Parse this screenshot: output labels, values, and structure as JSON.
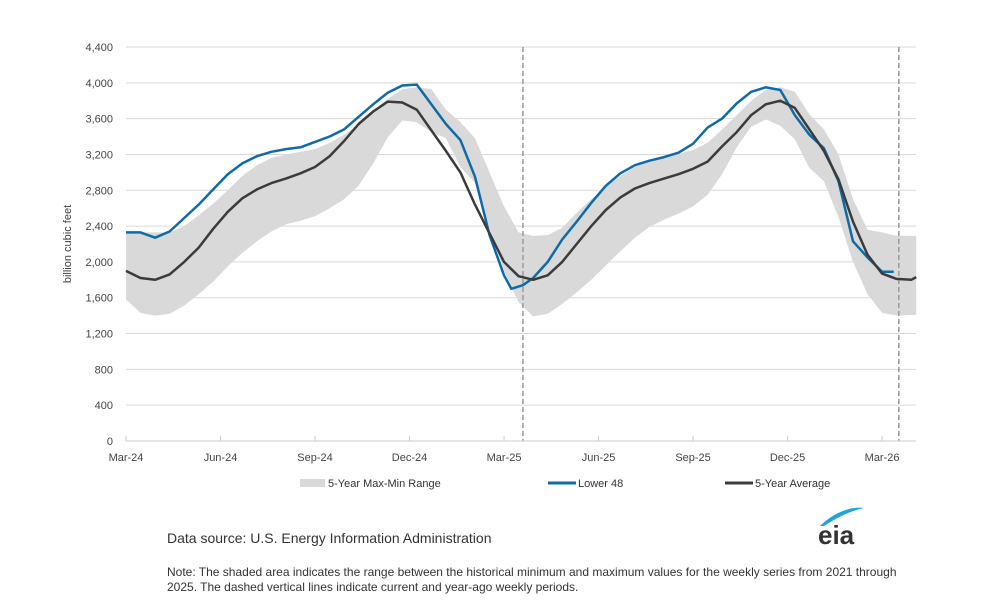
{
  "chart_data": {
    "type": "line",
    "title": "",
    "ylabel": "billion cubic feet",
    "xlabel": "",
    "ylim": [
      0,
      4400
    ],
    "yticks": [
      0,
      400,
      800,
      1200,
      1600,
      2000,
      2400,
      2800,
      3200,
      3600,
      4000,
      4400
    ],
    "ytick_labels": [
      "0",
      "400",
      "800",
      "1,200",
      "1,600",
      "2,000",
      "2,400",
      "2,800",
      "3,200",
      "3,600",
      "4,000",
      "4,400"
    ],
    "x_unit": "weeks since Mar-24",
    "xlim": [
      0,
      108.7
    ],
    "xticks": [
      0,
      13,
      26,
      39,
      52,
      65,
      78,
      91,
      104
    ],
    "xtick_labels": [
      "Mar-24",
      "Jun-24",
      "Sep-24",
      "Dec-24",
      "Mar-25",
      "Jun-25",
      "Sep-25",
      "Dec-25",
      "Mar-26"
    ],
    "grid": true,
    "dashed_vlines": [
      54.6,
      106.3
    ],
    "legend_position": "bottom",
    "legend": [
      {
        "label": "5-Year Max-Min Range",
        "kind": "area",
        "color": "#d9d9d9"
      },
      {
        "label": "Lower 48",
        "kind": "line",
        "color": "#0f6aa8"
      },
      {
        "label": "5-Year Average",
        "kind": "line",
        "color": "#3b3b3b"
      }
    ],
    "range": {
      "name": "5-Year Max-Min Range",
      "color": "#d9d9d9",
      "x": [
        0,
        2,
        4,
        6,
        8,
        10,
        12,
        14,
        16,
        18,
        20,
        22,
        24,
        26,
        28,
        30,
        32,
        34,
        36,
        38,
        40,
        42,
        44,
        46,
        48,
        50,
        52,
        54,
        56,
        58,
        60,
        62,
        64,
        66,
        68,
        70,
        72,
        74,
        76,
        78,
        80,
        82,
        84,
        86,
        88,
        90,
        92,
        94,
        96,
        98,
        100,
        102,
        104,
        106,
        108.7
      ],
      "max": [
        2330,
        2330,
        2330,
        2330,
        2400,
        2520,
        2650,
        2800,
        2960,
        3080,
        3160,
        3200,
        3230,
        3260,
        3330,
        3420,
        3530,
        3680,
        3820,
        3930,
        3950,
        3930,
        3700,
        3560,
        3380,
        3000,
        2620,
        2330,
        2290,
        2300,
        2380,
        2550,
        2700,
        2840,
        2960,
        3060,
        3130,
        3180,
        3210,
        3250,
        3330,
        3480,
        3640,
        3800,
        3920,
        3950,
        3900,
        3650,
        3480,
        3200,
        2700,
        2360,
        2330,
        2290,
        2290
      ],
      "min": [
        1580,
        1430,
        1400,
        1420,
        1510,
        1640,
        1780,
        1950,
        2100,
        2230,
        2340,
        2420,
        2460,
        2510,
        2600,
        2700,
        2850,
        3100,
        3390,
        3580,
        3560,
        3450,
        3380,
        3060,
        2880,
        2370,
        1900,
        1550,
        1390,
        1420,
        1530,
        1660,
        1800,
        1960,
        2120,
        2270,
        2390,
        2470,
        2540,
        2620,
        2750,
        2980,
        3280,
        3510,
        3590,
        3520,
        3370,
        3050,
        2900,
        2500,
        2000,
        1640,
        1430,
        1400,
        1410
      ]
    },
    "series": [
      {
        "name": "Lower 48",
        "color": "#0f6aa8",
        "x": [
          0,
          2,
          4,
          6,
          8,
          10,
          12,
          14,
          16,
          18,
          20,
          22,
          24,
          26,
          28,
          30,
          32,
          34,
          36,
          38,
          40,
          42,
          44,
          46,
          48,
          50,
          52,
          53,
          54.6,
          56,
          58,
          60,
          62,
          64,
          66,
          68,
          70,
          72,
          74,
          76,
          78,
          80,
          82,
          84,
          86,
          88,
          90,
          92,
          94,
          96,
          98,
          100,
          102,
          104,
          105.6
        ],
        "values": [
          2330,
          2330,
          2270,
          2340,
          2490,
          2640,
          2810,
          2980,
          3100,
          3180,
          3230,
          3260,
          3280,
          3340,
          3400,
          3480,
          3620,
          3760,
          3890,
          3970,
          3980,
          3760,
          3540,
          3360,
          2950,
          2300,
          1850,
          1700,
          1740,
          1820,
          2000,
          2250,
          2450,
          2660,
          2850,
          2990,
          3080,
          3130,
          3170,
          3220,
          3320,
          3500,
          3600,
          3770,
          3900,
          3950,
          3920,
          3640,
          3420,
          3270,
          2900,
          2230,
          2050,
          1890,
          1890
        ]
      },
      {
        "name": "5-Year Average",
        "color": "#3b3b3b",
        "x": [
          0,
          2,
          4,
          6,
          8,
          10,
          12,
          14,
          16,
          18,
          20,
          22,
          24,
          26,
          28,
          30,
          32,
          34,
          36,
          38,
          40,
          42,
          44,
          46,
          48,
          50,
          52,
          54,
          56,
          58,
          60,
          62,
          64,
          66,
          68,
          70,
          72,
          74,
          76,
          78,
          80,
          82,
          84,
          86,
          88,
          90,
          92,
          94,
          96,
          98,
          100,
          102,
          104,
          106,
          108,
          108.7
        ],
        "values": [
          1900,
          1820,
          1800,
          1860,
          2000,
          2160,
          2370,
          2560,
          2710,
          2810,
          2880,
          2930,
          2990,
          3060,
          3180,
          3350,
          3540,
          3680,
          3790,
          3780,
          3700,
          3470,
          3240,
          3000,
          2640,
          2320,
          2000,
          1840,
          1800,
          1850,
          2000,
          2200,
          2400,
          2580,
          2720,
          2820,
          2880,
          2930,
          2980,
          3040,
          3120,
          3290,
          3450,
          3640,
          3760,
          3800,
          3720,
          3480,
          3240,
          2920,
          2450,
          2080,
          1870,
          1810,
          1800,
          1830
        ]
      }
    ]
  },
  "source_text": "Data source: U.S. Energy Information Administration",
  "note_text": "Note: The shaded area indicates the range between the historical minimum and maximum values for the weekly series from 2021 through 2025. The dashed vertical lines indicate current and year-ago weekly periods.",
  "logo": {
    "text": "eia",
    "swoosh_color": "#1ea3dc",
    "text_color": "#333333"
  }
}
